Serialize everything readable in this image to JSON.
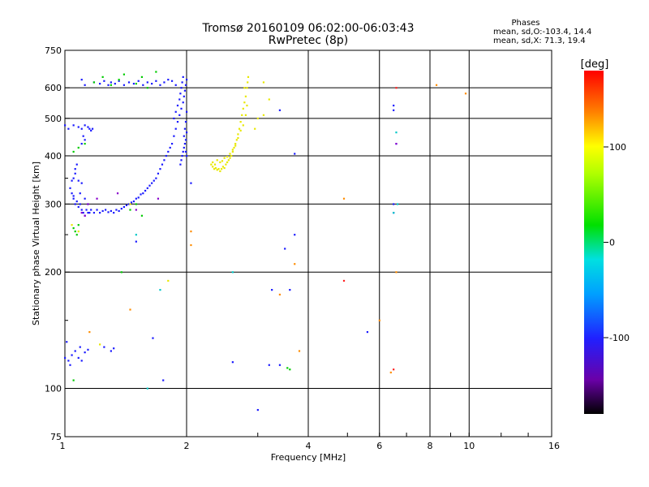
{
  "header": {
    "title": "Tromsø 20160109 06:02:00-06:03:43",
    "subtitle": "RwPretec (8p)",
    "phases_title": "Phases",
    "phases_o": "mean, sd,O:-103.4, 14.4",
    "phases_x": "mean, sd,X:  71.3, 19.4"
  },
  "colorbar": {
    "unit_label": "[deg]",
    "ticks": [
      "100",
      "0",
      "-100"
    ],
    "range": [
      -180,
      180
    ]
  },
  "chart_data": {
    "type": "scatter",
    "xlabel": "Frequency [MHz]",
    "ylabel": "Stationary phase Virtual Height [km]",
    "x_scale": "log",
    "y_scale": "log",
    "xlim": [
      1,
      16
    ],
    "ylim": [
      75,
      750
    ],
    "x_ticks": [
      "1",
      "2",
      "4",
      "6",
      "8",
      "10",
      "16"
    ],
    "y_ticks": [
      "75",
      "100",
      "200",
      "300",
      "400",
      "500",
      "600",
      "750"
    ],
    "x_gridlines": [
      2,
      4,
      6,
      8,
      10
    ],
    "y_gridlines": [
      100,
      200,
      300,
      400,
      500,
      600
    ],
    "series": [
      {
        "color": "#1a1aff",
        "points": [
          [
            1.0,
            480
          ],
          [
            1.02,
            470
          ],
          [
            1.05,
            480
          ],
          [
            1.08,
            475
          ],
          [
            1.1,
            470
          ],
          [
            1.12,
            480
          ],
          [
            1.14,
            475
          ],
          [
            1.15,
            470
          ],
          [
            1.16,
            465
          ],
          [
            1.17,
            470
          ],
          [
            1.1,
            430
          ],
          [
            1.12,
            440
          ],
          [
            1.11,
            450
          ],
          [
            1.03,
            330
          ],
          [
            1.04,
            320
          ],
          [
            1.05,
            310
          ],
          [
            1.06,
            300
          ],
          [
            1.07,
            305
          ],
          [
            1.08,
            295
          ],
          [
            1.09,
            300
          ],
          [
            1.1,
            290
          ],
          [
            1.11,
            285
          ],
          [
            1.12,
            280
          ],
          [
            1.13,
            290
          ],
          [
            1.14,
            285
          ],
          [
            1.15,
            285
          ],
          [
            1.16,
            290
          ],
          [
            1.18,
            285
          ],
          [
            1.2,
            290
          ],
          [
            1.22,
            285
          ],
          [
            1.24,
            288
          ],
          [
            1.26,
            290
          ],
          [
            1.28,
            286
          ],
          [
            1.3,
            288
          ],
          [
            1.32,
            285
          ],
          [
            1.34,
            290
          ],
          [
            1.36,
            288
          ],
          [
            1.38,
            292
          ],
          [
            1.4,
            295
          ],
          [
            1.42,
            298
          ],
          [
            1.44,
            300
          ],
          [
            1.46,
            303
          ],
          [
            1.48,
            305
          ],
          [
            1.5,
            310
          ],
          [
            1.52,
            312
          ],
          [
            1.54,
            318
          ],
          [
            1.56,
            320
          ],
          [
            1.58,
            325
          ],
          [
            1.6,
            330
          ],
          [
            1.62,
            335
          ],
          [
            1.64,
            340
          ],
          [
            1.66,
            345
          ],
          [
            1.68,
            350
          ],
          [
            1.7,
            360
          ],
          [
            1.72,
            370
          ],
          [
            1.74,
            380
          ],
          [
            1.76,
            390
          ],
          [
            1.78,
            400
          ],
          [
            1.8,
            410
          ],
          [
            1.82,
            420
          ],
          [
            1.84,
            430
          ],
          [
            1.06,
            360
          ],
          [
            1.05,
            350
          ],
          [
            1.08,
            345
          ],
          [
            1.1,
            340
          ],
          [
            1.07,
            380
          ],
          [
            1.06,
            370
          ],
          [
            1.09,
            320
          ],
          [
            1.12,
            310
          ],
          [
            1.14,
            300
          ],
          [
            1.04,
            345
          ],
          [
            1.05,
            315
          ],
          [
            1.86,
            450
          ],
          [
            1.88,
            470
          ],
          [
            1.9,
            490
          ],
          [
            1.92,
            510
          ],
          [
            1.94,
            530
          ],
          [
            1.96,
            550
          ],
          [
            1.97,
            570
          ],
          [
            1.98,
            590
          ],
          [
            1.99,
            610
          ],
          [
            2.0,
            630
          ],
          [
            1.86,
            500
          ],
          [
            1.88,
            520
          ],
          [
            1.9,
            540
          ],
          [
            1.92,
            560
          ],
          [
            1.93,
            580
          ],
          [
            1.94,
            600
          ],
          [
            1.95,
            620
          ],
          [
            1.96,
            640
          ],
          [
            1.97,
            450
          ],
          [
            1.98,
            470
          ],
          [
            1.99,
            490
          ],
          [
            2.0,
            520
          ],
          [
            1.95,
            400
          ],
          [
            1.96,
            410
          ],
          [
            1.97,
            420
          ],
          [
            1.98,
            430
          ],
          [
            1.99,
            440
          ],
          [
            2.0,
            460
          ],
          [
            1.94,
            390
          ],
          [
            1.93,
            380
          ],
          [
            2.0,
            400
          ],
          [
            1.99,
            410
          ],
          [
            1.18,
            620
          ],
          [
            1.22,
            615
          ],
          [
            1.25,
            625
          ],
          [
            1.28,
            610
          ],
          [
            1.3,
            620
          ],
          [
            1.33,
            615
          ],
          [
            1.36,
            625
          ],
          [
            1.4,
            610
          ],
          [
            1.44,
            620
          ],
          [
            1.48,
            615
          ],
          [
            1.52,
            625
          ],
          [
            1.56,
            610
          ],
          [
            1.6,
            620
          ],
          [
            1.64,
            615
          ],
          [
            1.68,
            625
          ],
          [
            1.72,
            610
          ],
          [
            1.76,
            620
          ],
          [
            1.8,
            630
          ],
          [
            1.84,
            625
          ],
          [
            1.88,
            610
          ],
          [
            1.12,
            610
          ],
          [
            1.1,
            630
          ],
          [
            1.0,
            120
          ],
          [
            1.02,
            118
          ],
          [
            1.04,
            122
          ],
          [
            1.06,
            125
          ],
          [
            1.08,
            120
          ],
          [
            1.1,
            118
          ],
          [
            1.12,
            124
          ],
          [
            1.14,
            126
          ],
          [
            1.01,
            132
          ],
          [
            1.03,
            115
          ],
          [
            1.09,
            128
          ],
          [
            1.3,
            125
          ],
          [
            1.32,
            127
          ],
          [
            1.25,
            128
          ],
          [
            1.5,
            240
          ],
          [
            1.75,
            105
          ],
          [
            1.65,
            135
          ],
          [
            2.05,
            340
          ],
          [
            2.6,
            117
          ],
          [
            3.0,
            88
          ],
          [
            3.2,
            115
          ],
          [
            3.25,
            180
          ],
          [
            3.4,
            525
          ],
          [
            3.5,
            230
          ],
          [
            3.6,
            180
          ],
          [
            3.7,
            405
          ],
          [
            3.7,
            250
          ],
          [
            5.6,
            140
          ],
          [
            6.5,
            540
          ],
          [
            6.5,
            525
          ],
          [
            6.6,
            430
          ],
          [
            6.5,
            300
          ],
          [
            6.5,
            285
          ],
          [
            3.4,
            115
          ]
        ]
      },
      {
        "color": "#e8e800",
        "points": [
          [
            2.3,
            380
          ],
          [
            2.32,
            375
          ],
          [
            2.34,
            370
          ],
          [
            2.36,
            372
          ],
          [
            2.38,
            368
          ],
          [
            2.4,
            370
          ],
          [
            2.42,
            365
          ],
          [
            2.44,
            370
          ],
          [
            2.46,
            375
          ],
          [
            2.48,
            372
          ],
          [
            2.5,
            380
          ],
          [
            2.52,
            385
          ],
          [
            2.54,
            390
          ],
          [
            2.56,
            395
          ],
          [
            2.58,
            400
          ],
          [
            2.6,
            410
          ],
          [
            2.62,
            420
          ],
          [
            2.64,
            430
          ],
          [
            2.66,
            440
          ],
          [
            2.68,
            455
          ],
          [
            2.7,
            470
          ],
          [
            2.72,
            490
          ],
          [
            2.74,
            510
          ],
          [
            2.76,
            530
          ],
          [
            2.78,
            550
          ],
          [
            2.8,
            570
          ],
          [
            2.82,
            600
          ],
          [
            2.83,
            620
          ],
          [
            2.84,
            640
          ],
          [
            2.32,
            385
          ],
          [
            2.35,
            380
          ],
          [
            2.38,
            390
          ],
          [
            2.42,
            385
          ],
          [
            2.45,
            388
          ],
          [
            2.48,
            395
          ],
          [
            2.52,
            398
          ],
          [
            2.56,
            405
          ],
          [
            2.6,
            415
          ],
          [
            2.64,
            425
          ],
          [
            2.68,
            445
          ],
          [
            2.72,
            465
          ],
          [
            2.76,
            480
          ],
          [
            2.8,
            510
          ],
          [
            2.82,
            540
          ],
          [
            2.78,
            600
          ],
          [
            3.1,
            620
          ],
          [
            3.1,
            510
          ],
          [
            2.95,
            470
          ],
          [
            3.0,
            500
          ],
          [
            3.2,
            560
          ],
          [
            1.22,
            130
          ],
          [
            1.45,
            300
          ],
          [
            1.8,
            190
          ],
          [
            1.04,
            265
          ],
          [
            1.08,
            255
          ]
        ]
      },
      {
        "color": "#00cc00",
        "points": [
          [
            1.05,
            260
          ],
          [
            1.06,
            255
          ],
          [
            1.08,
            265
          ],
          [
            1.07,
            250
          ],
          [
            1.05,
            410
          ],
          [
            1.08,
            420
          ],
          [
            1.12,
            430
          ],
          [
            1.18,
            620
          ],
          [
            1.24,
            640
          ],
          [
            1.3,
            610
          ],
          [
            1.36,
            630
          ],
          [
            1.4,
            650
          ],
          [
            1.5,
            615
          ],
          [
            1.55,
            640
          ],
          [
            1.6,
            600
          ],
          [
            1.68,
            660
          ],
          [
            1.38,
            200
          ],
          [
            1.45,
            290
          ],
          [
            1.5,
            300
          ],
          [
            1.55,
            280
          ],
          [
            3.6,
            112
          ],
          [
            3.55,
            113
          ],
          [
            1.05,
            105
          ]
        ]
      },
      {
        "color": "#00c8c8",
        "points": [
          [
            1.6,
            100
          ],
          [
            2.6,
            200
          ],
          [
            1.72,
            180
          ],
          [
            6.6,
            460
          ],
          [
            6.5,
            285
          ],
          [
            6.65,
            300
          ],
          [
            1.5,
            250
          ]
        ]
      },
      {
        "color": "#ff8c00",
        "points": [
          [
            1.15,
            140
          ],
          [
            1.45,
            160
          ],
          [
            2.05,
            255
          ],
          [
            2.05,
            235
          ],
          [
            3.4,
            175
          ],
          [
            3.8,
            125
          ],
          [
            4.9,
            310
          ],
          [
            6.0,
            150
          ],
          [
            6.4,
            110
          ],
          [
            6.6,
            200
          ],
          [
            8.3,
            610
          ],
          [
            9.8,
            580
          ],
          [
            3.7,
            210
          ]
        ]
      },
      {
        "color": "#ff2020",
        "points": [
          [
            6.6,
            600
          ],
          [
            6.5,
            112
          ],
          [
            4.9,
            190
          ]
        ]
      },
      {
        "color": "#8800cc",
        "points": [
          [
            1.1,
            285
          ],
          [
            1.12,
            280
          ],
          [
            1.14,
            300
          ],
          [
            1.5,
            290
          ],
          [
            1.35,
            320
          ],
          [
            1.7,
            310
          ],
          [
            6.6,
            430
          ],
          [
            1.2,
            310
          ]
        ]
      }
    ]
  }
}
